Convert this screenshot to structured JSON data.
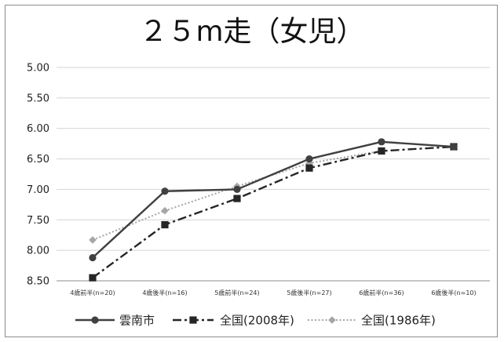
{
  "chart_data": {
    "type": "line",
    "title": "２５m走（女児）",
    "xlabel": "",
    "ylabel": "",
    "y_axis": {
      "min": 5.0,
      "max": 8.5,
      "reversed": true,
      "ticks": [
        "5.00",
        "5.50",
        "6.00",
        "6.50",
        "7.00",
        "7.50",
        "8.00",
        "8.50"
      ]
    },
    "categories": [
      "4歳前半(n=20)",
      "4歳後半(n=16)",
      "5歳前半(n=24)",
      "5歳後半(n=27)",
      "6歳前半(n=36)",
      "6歳後半(n=10)"
    ],
    "series": [
      {
        "name": "雲南市",
        "values": [
          8.12,
          7.03,
          7.0,
          6.5,
          6.22,
          6.3
        ],
        "color": "#404040",
        "style": "solid",
        "marker": "circle"
      },
      {
        "name": "全国(2008年)",
        "values": [
          8.45,
          7.58,
          7.15,
          6.65,
          6.37,
          6.3
        ],
        "color": "#262626",
        "style": "dashdot",
        "marker": "square"
      },
      {
        "name": "全国(1986年)",
        "values": [
          7.83,
          7.35,
          6.95,
          6.57,
          6.37,
          null
        ],
        "color": "#a6a6a6",
        "style": "dotted",
        "marker": "diamond"
      }
    ],
    "grid": true,
    "legend_position": "bottom"
  }
}
